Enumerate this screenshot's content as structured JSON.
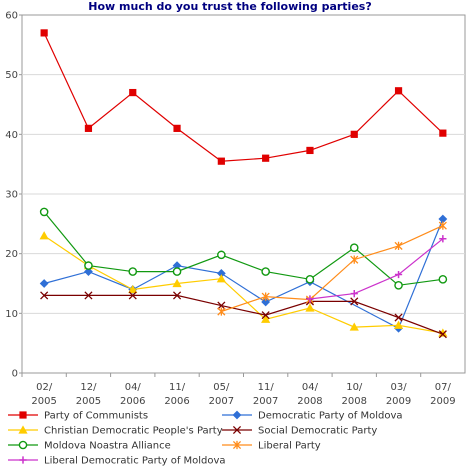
{
  "chart_data": {
    "type": "line",
    "title": "How much do you trust the following parties?",
    "ylim": [
      0,
      60
    ],
    "yticks": [
      0,
      10,
      20,
      30,
      40,
      50,
      60
    ],
    "grid": true,
    "legend_placement": "bottom",
    "categories": [
      [
        "02/",
        "2005"
      ],
      [
        "12/",
        "2005"
      ],
      [
        "04/",
        "2006"
      ],
      [
        "11/",
        "2006"
      ],
      [
        "05/",
        "2007"
      ],
      [
        "11/",
        "2007"
      ],
      [
        "04/",
        "2008"
      ],
      [
        "10/",
        "2008"
      ],
      [
        "03/",
        "2009"
      ],
      [
        "07/",
        "2009"
      ]
    ],
    "series": [
      {
        "name": "Party of Communists",
        "color": "#e00000",
        "marker": "square",
        "values": [
          57,
          41,
          47,
          41,
          35.5,
          36,
          37.3,
          40,
          47.3,
          40.2
        ]
      },
      {
        "name": "Democratic Party of Moldova",
        "color": "#2f6fd6",
        "marker": "diamond",
        "values": [
          15,
          17,
          14,
          18,
          16.7,
          11.9,
          15.3,
          null,
          7.5,
          25.8
        ]
      },
      {
        "name": "Christian Democratic People's Party",
        "color": "#ffcc00",
        "marker": "triangle",
        "values": [
          23,
          18,
          14,
          15,
          15.8,
          9,
          10.9,
          7.7,
          8,
          6.7
        ]
      },
      {
        "name": "Social Democratic Party",
        "color": "#7a0000",
        "marker": "x",
        "values": [
          13,
          13,
          13,
          13,
          11.3,
          9.7,
          12,
          12,
          9.3,
          6.5
        ]
      },
      {
        "name": "Moldova Noastra Alliance",
        "color": "#119911",
        "marker": "circle",
        "values": [
          27,
          18,
          17,
          17,
          19.8,
          17,
          15.7,
          21,
          14.7,
          15.7
        ]
      },
      {
        "name": "Liberal Party",
        "color": "#ff8c1a",
        "marker": "star",
        "values": [
          null,
          null,
          null,
          null,
          10.3,
          12.8,
          12.3,
          19,
          21.3,
          24.7
        ]
      },
      {
        "name": "Liberal Democratic Party of Moldova",
        "color": "#cc33cc",
        "marker": "plus",
        "values": [
          null,
          null,
          null,
          null,
          null,
          null,
          12.4,
          13.3,
          16.5,
          22.5
        ]
      }
    ]
  }
}
